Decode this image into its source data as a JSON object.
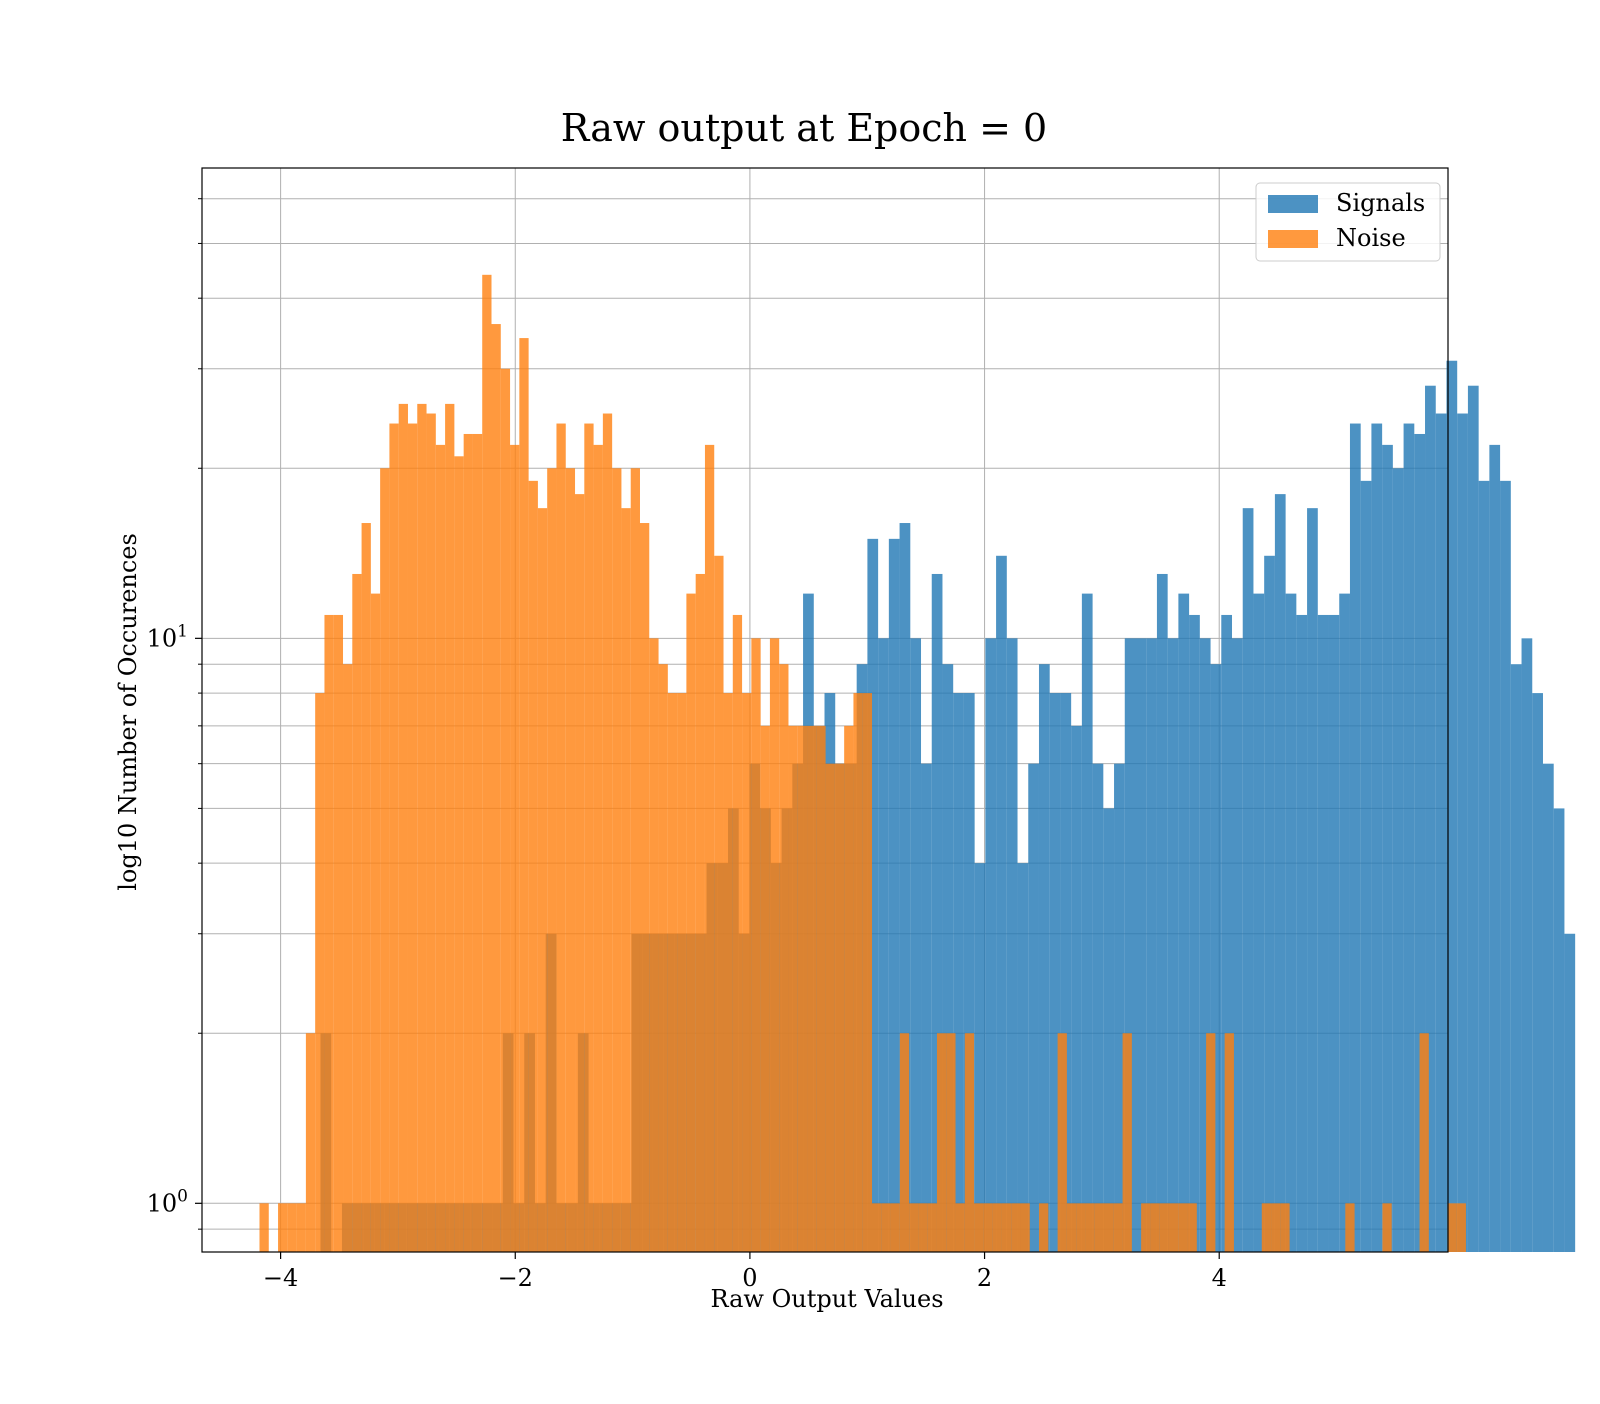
{
  "chart_data": {
    "type": "bar",
    "title": "Raw output at Epoch = 0",
    "xlabel": "Raw Output Values",
    "ylabel": "log10 Number of Occurences",
    "xlim": [
      -4.67,
      5.95
    ],
    "ylim": [
      0.82,
      68
    ],
    "yscale": "log",
    "grid": true,
    "legend": {
      "position": "top-right"
    },
    "x_ticks": [
      {
        "value": -4,
        "label": "−4"
      },
      {
        "value": -2,
        "label": "−2"
      },
      {
        "value": 0,
        "label": "0"
      },
      {
        "value": 2,
        "label": "2"
      },
      {
        "value": 4,
        "label": "4"
      }
    ],
    "y_major_ticks": [
      {
        "value": 1,
        "base": "10",
        "exp": "0"
      },
      {
        "value": 10,
        "base": "10",
        "exp": "1"
      }
    ],
    "y_minor_ticks": [
      0.9,
      2,
      3,
      4,
      5,
      6,
      7,
      8,
      9,
      20,
      30,
      40,
      50,
      60
    ],
    "series": [
      {
        "name": "Signals",
        "color": "#1f77b4",
        "alpha": 0.8,
        "bin_start": -3.66,
        "bin_width": 0.0914,
        "values": [
          2,
          0,
          1,
          1,
          1,
          1,
          1,
          1,
          1,
          1,
          1,
          1,
          1,
          1,
          1,
          1,
          1,
          2,
          1,
          2,
          1,
          3,
          1,
          1,
          2,
          1,
          1,
          1,
          1,
          3,
          3,
          3,
          3,
          3,
          3,
          3,
          4,
          4,
          5,
          3,
          6,
          5,
          4,
          5,
          6,
          12,
          7,
          8,
          6,
          6,
          9,
          15,
          10,
          15,
          16,
          10,
          6,
          13,
          9,
          8,
          8,
          4,
          10,
          14,
          10,
          4,
          6,
          9,
          8,
          8,
          7,
          12,
          6,
          5,
          6,
          10,
          10,
          10,
          13,
          10,
          12,
          11,
          10,
          9,
          11,
          10,
          17,
          12,
          14,
          18,
          12,
          11,
          17,
          11,
          11,
          12,
          24,
          19,
          24,
          22,
          20,
          24,
          23,
          28,
          25,
          31,
          25,
          28,
          19,
          22,
          19,
          9,
          10,
          8,
          6,
          5,
          3
        ]
      },
      {
        "name": "Noise",
        "color": "#ff7f0e",
        "alpha": 0.8,
        "bin_start": -4.18,
        "bin_width": 0.0791,
        "values": [
          1,
          0,
          1,
          1,
          1,
          2,
          8,
          11,
          11,
          9,
          13,
          16,
          12,
          20,
          24,
          26,
          24,
          26,
          25,
          22,
          26,
          21,
          23,
          23,
          44,
          36,
          30,
          22,
          34,
          19,
          17,
          20,
          24,
          20,
          18,
          24,
          22,
          25,
          20,
          17,
          20,
          16,
          10,
          9,
          8,
          8,
          12,
          13,
          22,
          14,
          8,
          11,
          8,
          10,
          7,
          10,
          9,
          7,
          7,
          7,
          7,
          6,
          6,
          7,
          8,
          8,
          1,
          1,
          1,
          2,
          1,
          1,
          1,
          2,
          2,
          1,
          2,
          1,
          1,
          1,
          1,
          1,
          1,
          0,
          1,
          0,
          2,
          1,
          1,
          1,
          1,
          1,
          1,
          2,
          0,
          1,
          1,
          1,
          1,
          1,
          1,
          0,
          2,
          0,
          2,
          0,
          0,
          0,
          1,
          1,
          1,
          0,
          0,
          0,
          0,
          0,
          0,
          1,
          0,
          0,
          0,
          1,
          0,
          0,
          0,
          2,
          0,
          0,
          1,
          1
        ]
      }
    ]
  }
}
